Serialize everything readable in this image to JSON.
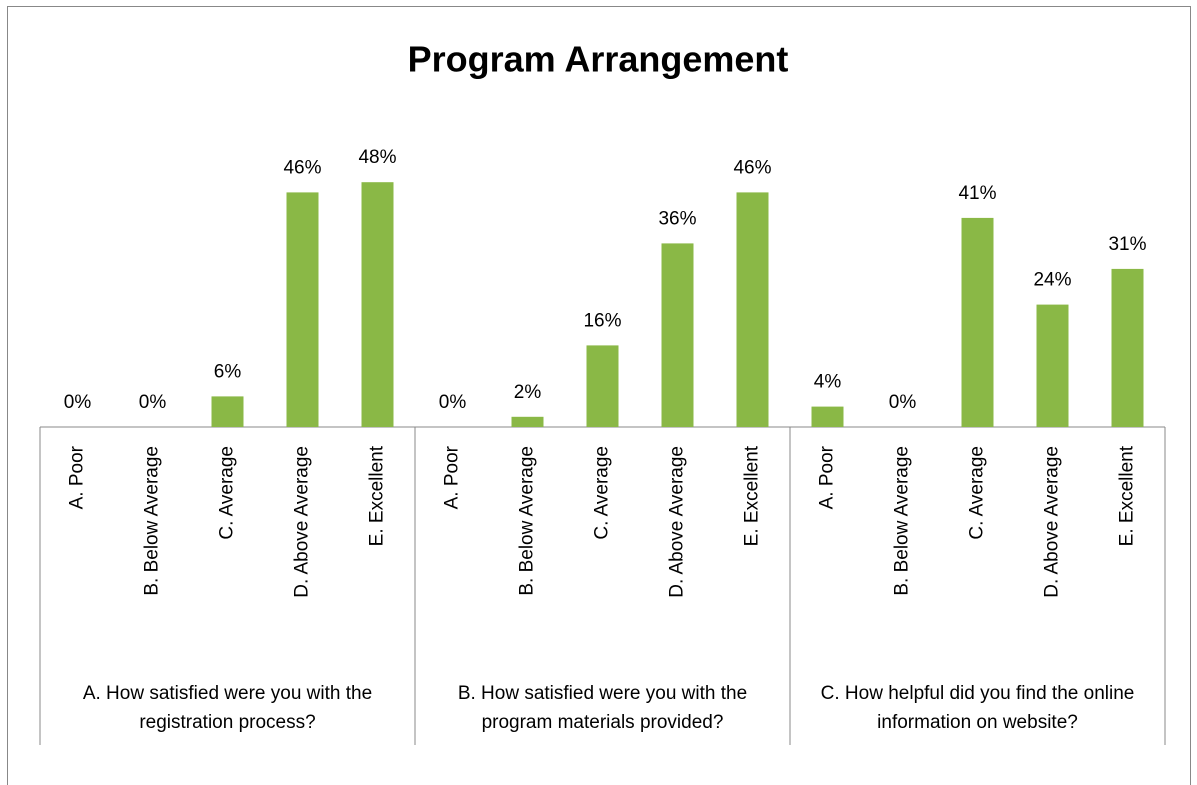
{
  "chart_data": {
    "type": "bar",
    "title": "Program Arrangement",
    "color": "#8ab846",
    "groups": [
      {
        "name": "A. How satisfied were you with the registration process?",
        "categories": [
          "A. Poor",
          "B. Below Average",
          "C. Average",
          "D. Above Average",
          "E. Excellent"
        ],
        "values": [
          0,
          0,
          6,
          46,
          48
        ],
        "value_labels": [
          "0%",
          "0%",
          "6%",
          "46%",
          "48%"
        ]
      },
      {
        "name": "B. How satisfied were you with the program materials provided?",
        "categories": [
          "A. Poor",
          "B. Below Average",
          "C. Average",
          "D. Above Average",
          "E. Excellent"
        ],
        "values": [
          0,
          2,
          16,
          36,
          46
        ],
        "value_labels": [
          "0%",
          "2%",
          "16%",
          "36%",
          "46%"
        ]
      },
      {
        "name": "C. How helpful did you find the online information on website?",
        "categories": [
          "A. Poor",
          "B. Below Average",
          "C. Average",
          "D. Above Average",
          "E. Excellent"
        ],
        "values": [
          4,
          0,
          41,
          24,
          31
        ],
        "value_labels": [
          "4%",
          "0%",
          "41%",
          "24%",
          "31%"
        ]
      }
    ]
  }
}
